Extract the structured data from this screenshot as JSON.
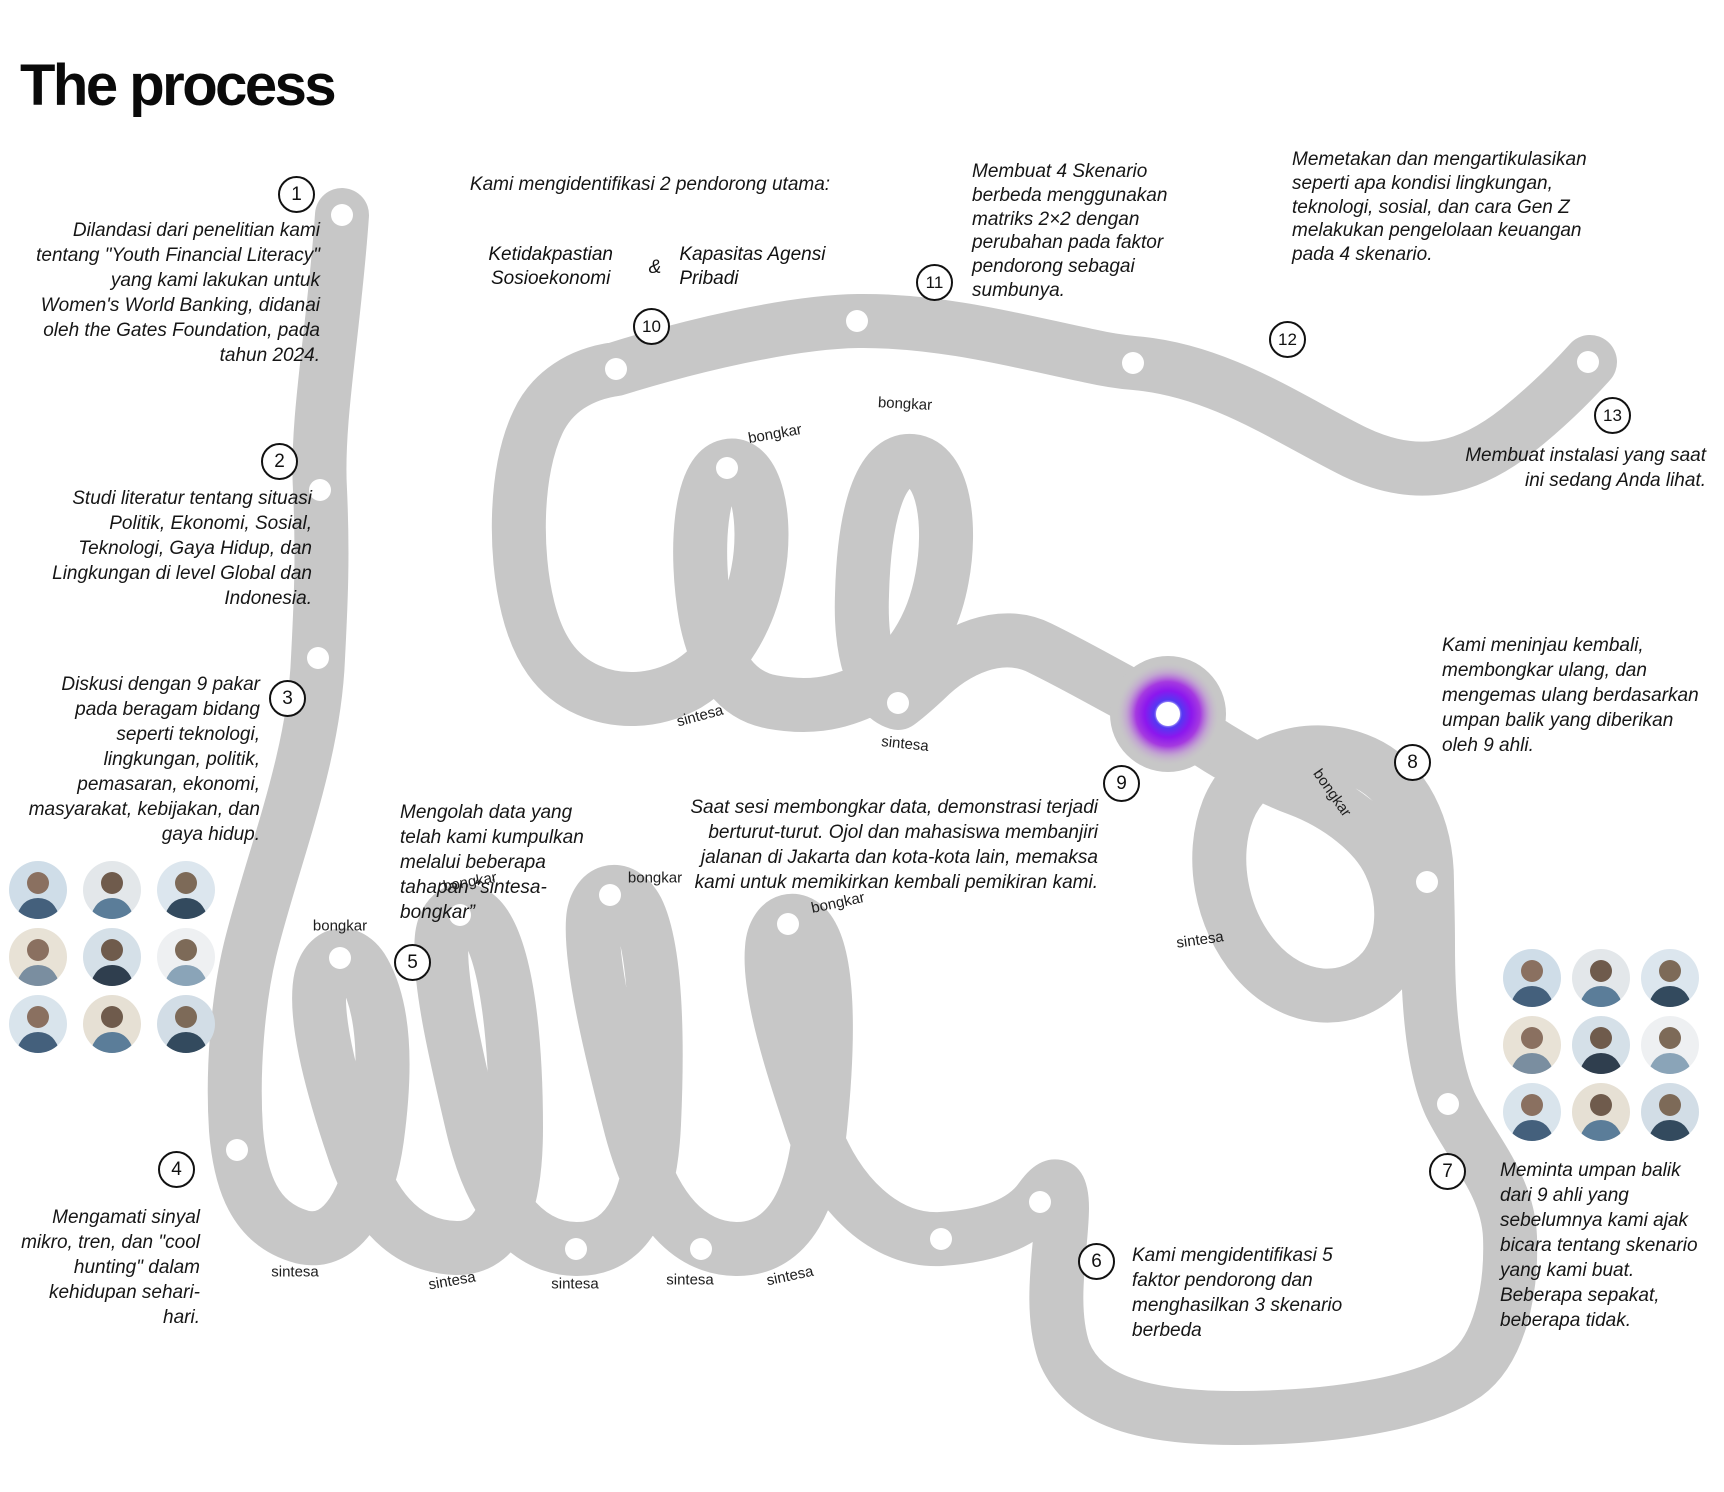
{
  "title": "The process",
  "colors": {
    "path_gray": "#c7c7c7",
    "text": "#161616",
    "glow_blue": "#4a3bf0",
    "glow_purple": "#9c1ced"
  },
  "steps": [
    {
      "num": "1",
      "text": "Dilandasi dari penelitian kami tentang \"Youth Financial Literacy\" yang kami lakukan untuk Women's World Banking, didanai oleh the Gates Foundation, pada tahun 2024."
    },
    {
      "num": "2",
      "text": "Studi literatur tentang situasi Politik, Ekonomi, Sosial, Teknologi, Gaya Hidup, dan Lingkungan di level Global dan Indonesia."
    },
    {
      "num": "3",
      "text": "Diskusi dengan 9 pakar pada beragam bidang seperti teknologi, lingkungan, politik, pemasaran, ekonomi, masyarakat, kebijakan, dan gaya hidup."
    },
    {
      "num": "4",
      "text": "Mengamati sinyal mikro, tren, dan \"cool hunting\" dalam kehidupan sehari-hari."
    },
    {
      "num": "5",
      "text": "Mengolah data yang telah kami kumpulkan melalui beberapa tahapan “sintesa-bongkar”"
    },
    {
      "num": "6",
      "text": "Kami mengidentifikasi 5 faktor pendorong dan menghasilkan 3 skenario berbeda"
    },
    {
      "num": "7",
      "text": "Meminta umpan balik dari 9 ahli yang sebelumnya kami ajak bicara tentang skenario yang kami buat. Beberapa sepakat, beberapa tidak."
    },
    {
      "num": "8",
      "text": "Kami meninjau kembali, membongkar ulang, dan mengemas ulang berdasarkan umpan balik yang diberikan oleh 9 ahli."
    },
    {
      "num": "9",
      "text": "Saat sesi membongkar data, demonstrasi terjadi berturut-turut. Ojol dan mahasiswa membanjiri jalanan di Jakarta dan kota-kota lain, memaksa kami untuk memikirkan kembali pemikiran kami."
    },
    {
      "num": "10",
      "intro": "Kami mengidentifikasi 2 pendorong utama:",
      "driver1": "Ketidakpastian Sosioekonomi",
      "amp": "&",
      "driver2": "Kapasitas Agensi Pribadi"
    },
    {
      "num": "11",
      "text": "Membuat 4 Skenario berbeda menggunakan matriks 2×2 dengan perubahan pada faktor pendorong sebagai sumbunya."
    },
    {
      "num": "12",
      "text": "Memetakan dan mengartikulasikan seperti apa kondisi lingkungan, teknologi, sosial, dan cara Gen Z melakukan pengelolaan keuangan pada 4 skenario."
    },
    {
      "num": "13",
      "text": "Membuat instalasi yang saat ini sedang Anda lihat."
    }
  ],
  "path_labels": [
    {
      "text": "bongkar"
    },
    {
      "text": "bongkar"
    },
    {
      "text": "bongkar"
    },
    {
      "text": "bongkar"
    },
    {
      "text": "sintesa"
    },
    {
      "text": "sintesa"
    },
    {
      "text": "sintesa"
    },
    {
      "text": "sintesa"
    },
    {
      "text": "sintesa"
    },
    {
      "text": "bongkar"
    },
    {
      "text": "bongkar"
    },
    {
      "text": "sintesa"
    },
    {
      "text": "sintesa"
    },
    {
      "text": "bongkar"
    },
    {
      "text": "sintesa"
    }
  ],
  "avatars": {
    "left_count": 9,
    "right_count": 9
  }
}
